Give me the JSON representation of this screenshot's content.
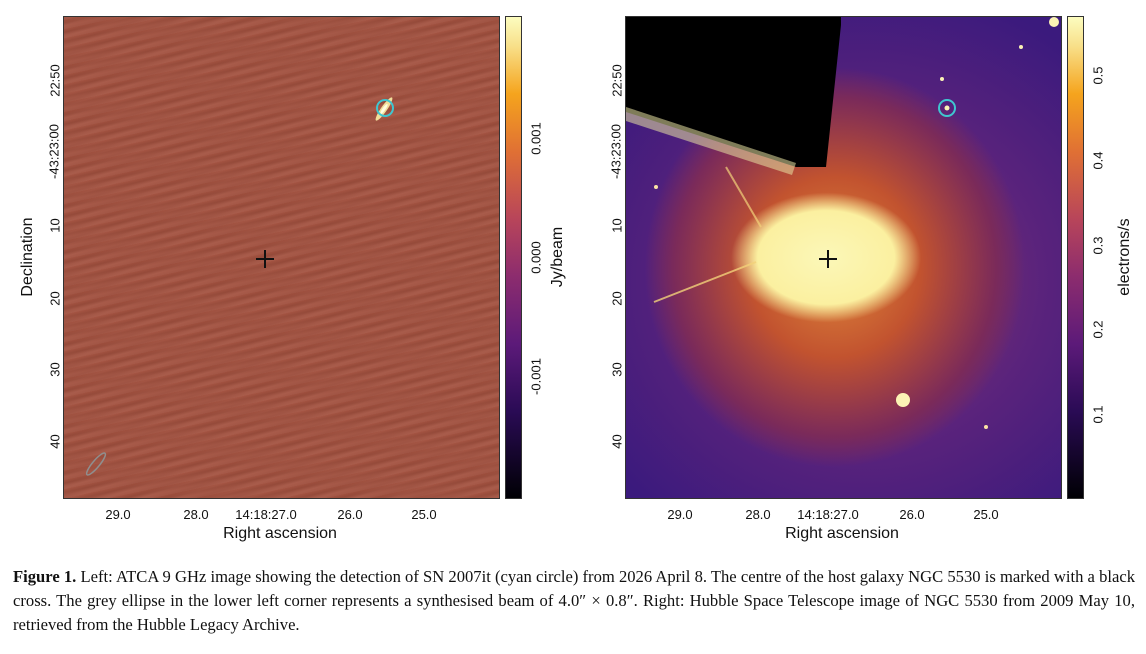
{
  "left_panel": {
    "xlabel": "Right ascension",
    "ylabel": "Declination",
    "colorbar_label": "Jy/beam",
    "x_ticks": [
      "29.0",
      "28.0",
      "14:18:27.0",
      "26.0",
      "25.0"
    ],
    "y_ticks": [
      "22:50",
      "-43:23:00",
      "10",
      "20",
      "30",
      "40"
    ],
    "colorbar_ticks": [
      "0.001",
      "0.000",
      "-0.001"
    ]
  },
  "right_panel": {
    "xlabel": "Right ascension",
    "colorbar_label": "electrons/s",
    "x_ticks": [
      "29.0",
      "28.0",
      "14:18:27.0",
      "26.0",
      "25.0"
    ],
    "y_ticks": [
      "22:50",
      "-43:23:00",
      "10",
      "20",
      "30",
      "40"
    ],
    "colorbar_ticks": [
      "0.5",
      "0.4",
      "0.3",
      "0.2",
      "0.1"
    ]
  },
  "colors": {
    "cyan_circle": "#3fc6d0",
    "cross": "#111111",
    "beam_ellipse": "#8f8f8f"
  },
  "caption": {
    "label": "Figure 1.",
    "text": "Left: ATCA 9 GHz image showing the detection of SN 2007it (cyan circle) from 2026 April 8. The centre of the host galaxy NGC 5530 is marked with a black cross. The grey ellipse in the lower left corner represents a synthesised beam of 4.0″ × 0.8″. Right: Hubble Space Telescope image of NGC 5530 from 2009 May 10, retrieved from the Hubble Legacy Archive."
  }
}
